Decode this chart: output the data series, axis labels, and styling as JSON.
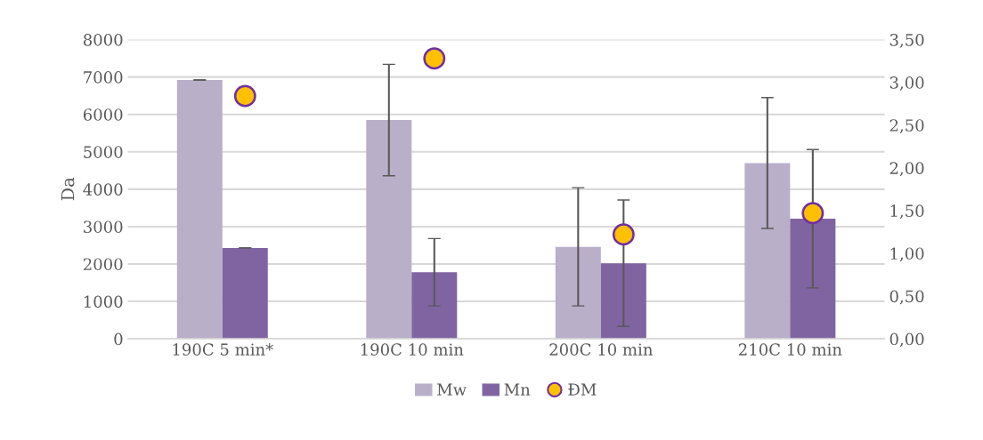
{
  "chart_data": {
    "type": "bar",
    "ylabel": "Da",
    "categories": [
      "190C 5 min*",
      "190C 10 min",
      "200C 10 min",
      "210C 10 min"
    ],
    "series": [
      {
        "name": "Mw",
        "color": "#b9afc9",
        "values": [
          6920,
          5850,
          2460,
          4700
        ],
        "errors": [
          null,
          1490,
          1580,
          1750
        ]
      },
      {
        "name": "Mn",
        "color": "#8064a2",
        "values": [
          2430,
          1780,
          2020,
          3210
        ],
        "errors": [
          null,
          900,
          1690,
          1850
        ]
      },
      {
        "name": "ĐM",
        "type": "scatter",
        "axis": "y2",
        "color": "#ffc000",
        "marker": "circle",
        "values": [
          2.84,
          3.28,
          1.22,
          1.47
        ]
      }
    ],
    "ylim": [
      0,
      8000
    ],
    "yticks": [
      0,
      1000,
      2000,
      3000,
      4000,
      5000,
      6000,
      7000,
      8000
    ],
    "y2lim": [
      0,
      3.5
    ],
    "y2ticks": [
      {
        "value": 0,
        "label": "0,00"
      },
      {
        "value": 0.5,
        "label": "0,50"
      },
      {
        "value": 1,
        "label": "1,00"
      },
      {
        "value": 1.5,
        "label": "1,50"
      },
      {
        "value": 2,
        "label": "2,00"
      },
      {
        "value": 2.5,
        "label": "2,50"
      },
      {
        "value": 3,
        "label": "3,00"
      },
      {
        "value": 3.5,
        "label": "3,50"
      }
    ],
    "grid": "y",
    "legend": "bottom"
  }
}
